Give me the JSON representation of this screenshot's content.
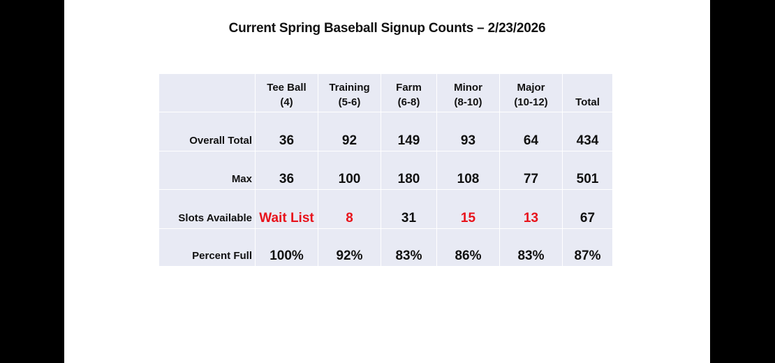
{
  "title": "Current Spring Baseball Signup Counts – 2/23/2026",
  "table": {
    "headers": [
      {
        "line1": "Tee Ball",
        "line2": "(4)"
      },
      {
        "line1": "Training",
        "line2": "(5-6)"
      },
      {
        "line1": "Farm",
        "line2": "(6-8)"
      },
      {
        "line1": "Minor",
        "line2": "(8-10)"
      },
      {
        "line1": "Major",
        "line2": "(10-12)"
      },
      {
        "line1": "",
        "line2": "Total"
      }
    ],
    "rows": [
      {
        "label": "Overall Total",
        "values": [
          "36",
          "92",
          "149",
          "93",
          "64",
          "434"
        ]
      },
      {
        "label": "Max",
        "values": [
          "36",
          "100",
          "180",
          "108",
          "77",
          "501"
        ]
      },
      {
        "label": "Slots Available",
        "values": [
          "Wait List",
          "8",
          "31",
          "15",
          "13",
          "67"
        ]
      },
      {
        "label": "Percent Full",
        "values": [
          "100%",
          "92%",
          "83%",
          "86%",
          "83%",
          "87%"
        ]
      }
    ]
  },
  "colors": {
    "highlight": "#e8121b",
    "table_bg": "#e8eaf4"
  }
}
